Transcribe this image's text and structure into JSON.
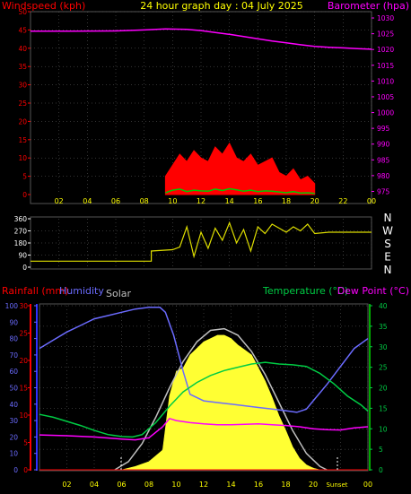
{
  "page": {
    "title": "24 hour graph day : 04 July 2025"
  },
  "colors": {
    "wind": "#ff0000",
    "gust_fill": "#ff0000",
    "wind_avg": "#00cc00",
    "barometer": "#ff00ff",
    "direction": "#dddd00",
    "humidity": "#6b6bff",
    "temperature": "#00cc44",
    "dewpoint": "#ff00ff",
    "solar_fill": "#ffff33",
    "solar_theory": "#bfbfbf",
    "rain": "#ff0000",
    "frame": "#555555",
    "grid": "#666666",
    "xtick": "#ffff00"
  },
  "chart_data": [
    {
      "id": "wind_baro",
      "type": "line",
      "y_left": {
        "label": "Windspeed (kph)",
        "ticks": [
          "0",
          "5",
          "10",
          "15",
          "20",
          "25",
          "30",
          "35",
          "40",
          "45",
          "50"
        ],
        "ylim": [
          0,
          50
        ]
      },
      "y_right": {
        "label": "Barometer (hpa)",
        "ticks": [
          "975",
          "980",
          "985",
          "990",
          "995",
          "1000",
          "1005",
          "1010",
          "1015",
          "1020",
          "1025",
          "1030"
        ],
        "ylim": [
          974,
          1032
        ]
      },
      "x_ticks": [
        "02",
        "04",
        "06",
        "08",
        "10",
        "12",
        "14",
        "16",
        "18",
        "20",
        "22",
        "00"
      ],
      "xlim": [
        0,
        24
      ],
      "series": [
        {
          "key": "barometer",
          "x": [
            0,
            3,
            6,
            8,
            9.5,
            11,
            12,
            13,
            14,
            15,
            16,
            17,
            18,
            19,
            20,
            21,
            22,
            23,
            24
          ],
          "y": [
            1025.8,
            1025.8,
            1025.9,
            1026.2,
            1026.5,
            1026.4,
            1026.0,
            1025.4,
            1024.8,
            1024.1,
            1023.4,
            1022.7,
            1022.1,
            1021.5,
            1021.0,
            1020.7,
            1020.5,
            1020.3,
            1020.1
          ]
        },
        {
          "key": "wind_gust",
          "x": [
            9.5,
            10,
            10.5,
            11,
            11.5,
            12,
            12.5,
            13,
            13.5,
            14,
            14.5,
            15,
            15.5,
            16,
            16.5,
            17,
            17.5,
            18,
            18.5,
            19,
            19.5,
            20
          ],
          "y": [
            5,
            8,
            11,
            9,
            12,
            10,
            9,
            13,
            11,
            14,
            10,
            9,
            11,
            8,
            9,
            10,
            6,
            5,
            7,
            4,
            5,
            3
          ]
        },
        {
          "key": "wind_avg",
          "x": [
            9.5,
            10,
            10.5,
            11,
            11.5,
            12,
            12.5,
            13,
            13.5,
            14,
            14.5,
            15,
            15.5,
            16,
            16.5,
            17,
            17.5,
            18,
            18.5,
            19,
            19.5,
            20
          ],
          "y": [
            0.5,
            1.2,
            1.5,
            0.8,
            1.2,
            1.0,
            0.9,
            1.5,
            1.1,
            1.6,
            1.3,
            0.9,
            1.2,
            0.8,
            1.0,
            0.9,
            0.7,
            0.5,
            0.8,
            0.4,
            0.5,
            0.3
          ]
        }
      ]
    },
    {
      "id": "direction",
      "type": "line",
      "y_left": {
        "ticks": [
          "0",
          "90",
          "180",
          "270",
          "360"
        ],
        "ylim": [
          0,
          360
        ]
      },
      "y_right": {
        "ticks": [
          "N",
          "E",
          "S",
          "W",
          "N"
        ]
      },
      "x_ticks": [
        "02",
        "04",
        "06",
        "08",
        "10",
        "12",
        "14",
        "16",
        "18",
        "20",
        "22",
        "00"
      ],
      "xlim": [
        0,
        24
      ],
      "series": [
        {
          "key": "direction",
          "x": [
            0,
            8.5,
            8.5,
            10,
            10.5,
            11,
            11.5,
            12,
            12.5,
            13,
            13.5,
            14,
            14.5,
            15,
            15.5,
            16,
            16.5,
            17,
            17.5,
            18,
            18.5,
            19,
            19.5,
            20,
            21,
            22,
            24
          ],
          "y": [
            45,
            45,
            120,
            130,
            150,
            300,
            80,
            260,
            140,
            290,
            200,
            330,
            180,
            280,
            120,
            300,
            250,
            320,
            290,
            260,
            300,
            270,
            320,
            250,
            260,
            260,
            260
          ]
        }
      ]
    },
    {
      "id": "temp_hum_solar",
      "type": "line",
      "labels": {
        "rainfall": "Rainfall (mm)",
        "humidity": "Humidity",
        "solar": "Solar",
        "temperature": "Temperature (°C)",
        "dewpoint": "Dew Point (°C)"
      },
      "y_humidity": {
        "ticks": [
          "0",
          "10",
          "20",
          "30",
          "40",
          "50",
          "60",
          "70",
          "80",
          "90",
          "100"
        ],
        "ylim": [
          0,
          100
        ]
      },
      "y_rain": {
        "ticks": [
          "0",
          "5",
          "10",
          "15",
          "20",
          "25",
          "30"
        ],
        "ylim": [
          0,
          30
        ]
      },
      "y_temp": {
        "ticks": [
          "0",
          "5",
          "10",
          "15",
          "20",
          "25",
          "30",
          "35",
          "40"
        ],
        "ylim": [
          0,
          40
        ]
      },
      "x_ticks": [
        "02",
        "04",
        "06",
        "08",
        "10",
        "12",
        "14",
        "16",
        "18",
        "20",
        "Sunset",
        "00"
      ],
      "xlim": [
        0,
        24
      ],
      "series": [
        {
          "key": "humidity",
          "x": [
            0,
            1,
            2,
            3,
            4,
            5,
            6,
            7,
            8,
            8.8,
            9.2,
            9.8,
            10.5,
            11,
            12,
            13,
            14,
            15,
            16,
            17,
            18,
            18.8,
            19.5,
            20,
            21,
            22,
            23,
            24
          ],
          "y": [
            74,
            79,
            84,
            88,
            92,
            94,
            96,
            98,
            99,
            99,
            96,
            82,
            60,
            46,
            42,
            41,
            40,
            39,
            38,
            37,
            36,
            35,
            37,
            42,
            52,
            63,
            74,
            80
          ]
        },
        {
          "key": "temperature",
          "x": [
            0,
            1,
            2,
            3,
            4,
            5,
            6,
            6.8,
            7.5,
            8.5,
            9.5,
            10.5,
            11.5,
            12.5,
            13.5,
            14.5,
            15.5,
            16.5,
            17.5,
            18.5,
            19.5,
            20.5,
            21.5,
            22.5,
            23.5,
            24
          ],
          "y": [
            13.5,
            12.8,
            11.8,
            10.8,
            9.6,
            8.6,
            8.1,
            8.0,
            8.6,
            11.5,
            15.5,
            19.0,
            21.3,
            23.0,
            24.2,
            25.0,
            25.8,
            26.2,
            25.8,
            25.6,
            25.2,
            23.5,
            21.0,
            18.0,
            15.8,
            14.3
          ]
        },
        {
          "key": "dewpoint",
          "x": [
            0,
            2,
            4,
            6,
            7,
            8,
            9,
            9.5,
            10,
            11,
            12,
            13,
            14,
            15,
            16,
            17,
            18,
            19,
            20,
            21,
            22,
            23,
            24
          ],
          "y": [
            8.5,
            8.3,
            8.0,
            7.5,
            7.3,
            7.8,
            10.5,
            12.5,
            12.0,
            11.5,
            11.2,
            11.0,
            11.0,
            11.1,
            11.2,
            11.0,
            10.8,
            10.5,
            10.0,
            9.8,
            9.7,
            10.2,
            10.5
          ]
        },
        {
          "key": "solar",
          "x": [
            6,
            7,
            8,
            9,
            9.5,
            10,
            10.5,
            11,
            11.5,
            12,
            12.5,
            13,
            13.5,
            14,
            14.5,
            15,
            15.5,
            16,
            16.5,
            17,
            17.5,
            18,
            18.5,
            19,
            19.5,
            20,
            20.5
          ],
          "y": [
            0,
            2,
            5,
            12,
            45,
            60,
            62,
            70,
            74,
            78,
            80,
            82,
            82,
            80,
            76,
            73,
            70,
            62,
            54,
            44,
            33,
            24,
            14,
            7,
            3,
            1,
            0
          ]
        },
        {
          "key": "solar_theory",
          "x": [
            5.5,
            6.5,
            7.5,
            8.5,
            9.5,
            10.5,
            11.5,
            12.5,
            13.5,
            14.5,
            15.5,
            16.5,
            17.5,
            18.5,
            19.5,
            20.5,
            21
          ],
          "y": [
            0,
            5,
            16,
            32,
            50,
            66,
            78,
            85,
            86,
            82,
            72,
            58,
            41,
            24,
            10,
            2,
            0
          ]
        }
      ]
    }
  ]
}
